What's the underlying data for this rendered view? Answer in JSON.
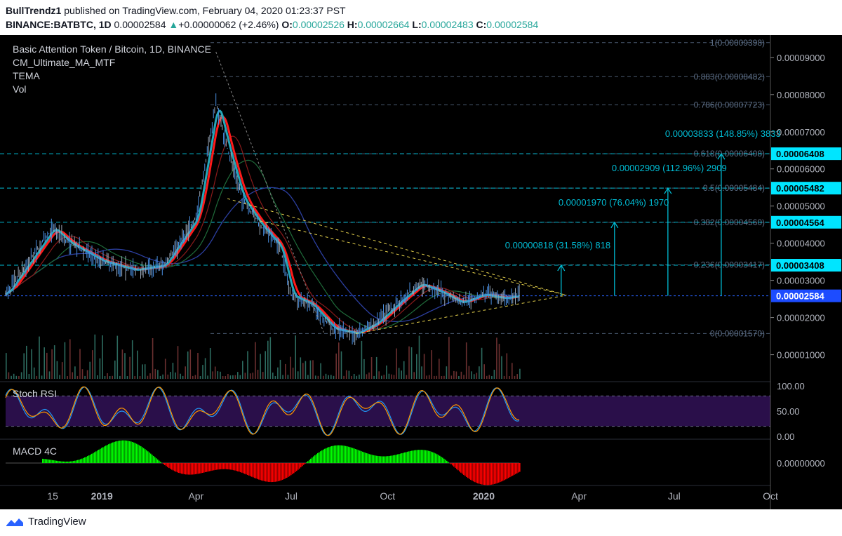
{
  "header": {
    "author": "BullTrendz1",
    "published_text": "published on TradingView.com, February 04, 2020 01:23:37 PST",
    "symbol": "BINANCE:BATBTC, 1D",
    "price": "0.00002584",
    "change": "+0.00000062 (+2.46%)",
    "open_label": "O:",
    "open": "0.00002526",
    "high_label": "H:",
    "high": "0.00002664",
    "low_label": "L:",
    "low": "0.00002483",
    "close_label": "C:",
    "close": "0.00002584"
  },
  "legend": {
    "title": "Basic Attention Token / Bitcoin, 1D, BINANCE",
    "indicators": [
      "CM_Ultimate_MA_MTF",
      "TEMA",
      "Vol"
    ]
  },
  "colors": {
    "background": "#000000",
    "cyan": "#00bcd4",
    "blue_line": "#2962ff",
    "red_ma": "#ff1a1a",
    "teal_ma": "#26a6b8",
    "yellow_dash": "#e8d44d",
    "fib_gray": "#4a5a70",
    "rsi_k": "#2196f3",
    "rsi_d": "#ff9800",
    "rsi_band": "#2a0f4a",
    "macd_up": "#00ff00",
    "macd_down": "#ff0000"
  },
  "price_axis": {
    "ticks": [
      "0.00009000",
      "0.00008000",
      "0.00007000",
      "0.00006000",
      "0.00005000",
      "0.00004000",
      "0.00003000",
      "0.00002000",
      "0.00001000"
    ],
    "tick_values": [
      9e-05,
      8e-05,
      7e-05,
      6e-05,
      5e-05,
      4e-05,
      3e-05,
      2e-05,
      1e-05
    ],
    "labels": [
      {
        "text": "0.00006408",
        "value": 6.408e-05
      },
      {
        "text": "0.00005482",
        "value": 5.482e-05
      },
      {
        "text": "0.00004564",
        "value": 4.564e-05
      },
      {
        "text": "0.00003408",
        "value": 3.408e-05
      },
      {
        "text": "0.00002584",
        "value": 2.584e-05
      }
    ]
  },
  "fib_levels": [
    {
      "text": "1(0.00009398)",
      "value": 9.398e-05
    },
    {
      "text": "0.883(0.00008482)",
      "value": 8.482e-05
    },
    {
      "text": "0.786(0.00007723)",
      "value": 7.723e-05
    },
    {
      "text": "0.618(0.00006408)",
      "value": 6.408e-05
    },
    {
      "text": "0.5(0.00005484)",
      "value": 5.484e-05
    },
    {
      "text": "0.382(0.00004560)",
      "value": 4.56e-05
    },
    {
      "text": "0.236(0.00003417)",
      "value": 3.417e-05
    },
    {
      "text": "0(0.00001570)",
      "value": 1.57e-05
    }
  ],
  "targets": [
    {
      "text": "0.00000818 (31.58%) 818",
      "value": 3.408e-05
    },
    {
      "text": "0.00001970 (76.04%) 1970",
      "value": 4.564e-05
    },
    {
      "text": "0.00002909 (112.96%) 2909",
      "value": 5.482e-05
    },
    {
      "text": "0.00003833 (148.85%) 3833",
      "value": 6.408e-05
    }
  ],
  "time_axis": [
    "15",
    "2019",
    "Apr",
    "Jul",
    "Oct",
    "2020",
    "Apr",
    "Jul",
    "Oct"
  ],
  "stoch_rsi": {
    "title": "Stoch RSI",
    "ticks": [
      "100.00",
      "50.00",
      "0.00"
    ],
    "levels": [
      100,
      50,
      0
    ],
    "band": [
      20,
      80
    ]
  },
  "macd": {
    "title": "MACD 4C",
    "ticks": [
      "0.00000000"
    ]
  },
  "footer": {
    "brand": "TradingView"
  },
  "chart_data": {
    "type": "line",
    "title": "Basic Attention Token / Bitcoin, 1D, BINANCE",
    "x": [
      "2018-10-01",
      "2018-11-15",
      "2018-12-01",
      "2019-01-01",
      "2019-02-01",
      "2019-03-01",
      "2019-04-01",
      "2019-04-20",
      "2019-05-01",
      "2019-05-15",
      "2019-06-01",
      "2019-06-20",
      "2019-07-01",
      "2019-07-20",
      "2019-08-10",
      "2019-09-01",
      "2019-09-20",
      "2019-10-15",
      "2019-11-01",
      "2019-11-20",
      "2019-12-10",
      "2020-01-01",
      "2020-01-20",
      "2020-02-04"
    ],
    "series": [
      {
        "name": "BATBTC close",
        "values": [
          2.62e-05,
          4.41e-05,
          4e-05,
          3.52e-05,
          3.28e-05,
          3.4e-05,
          4.68e-05,
          7.8e-05,
          6.55e-05,
          5.2e-05,
          4.5e-05,
          3.9e-05,
          2.6e-05,
          2.35e-05,
          1.7e-05,
          1.57e-05,
          1.85e-05,
          2.5e-05,
          2.9e-05,
          2.7e-05,
          2.4e-05,
          2.62e-05,
          2.52e-05,
          2.584e-05
        ]
      }
    ],
    "ylim": [
      3.5e-06,
      9.45e-05
    ],
    "xlim": [
      "2018-10-01",
      "2020-10-01"
    ]
  }
}
